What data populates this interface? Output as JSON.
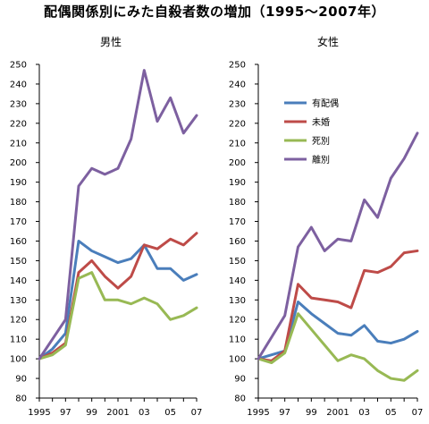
{
  "title": "配偶関係別にみた自殺者数の増加（1995～2007年）",
  "chart_data": [
    {
      "type": "line",
      "title": "男性",
      "x": [
        1995,
        1996,
        1997,
        1998,
        1999,
        2000,
        2001,
        2002,
        2003,
        2004,
        2005,
        2006,
        2007
      ],
      "xtick_labels": [
        "1995",
        "97",
        "99",
        "2001",
        "03",
        "05",
        "07"
      ],
      "xtick_values": [
        1995,
        1997,
        1999,
        2001,
        2003,
        2005,
        2007
      ],
      "ylim": [
        80,
        250
      ],
      "yticks": [
        80,
        90,
        100,
        110,
        120,
        130,
        140,
        150,
        160,
        170,
        180,
        190,
        200,
        210,
        220,
        230,
        240,
        250
      ],
      "grid": false,
      "series": [
        {
          "name": "有配偶",
          "color": "#4a7ebb",
          "values": [
            100,
            105,
            113,
            160,
            155,
            152,
            149,
            151,
            158,
            146,
            146,
            140,
            143
          ]
        },
        {
          "name": "未婚",
          "color": "#be4b48",
          "values": [
            100,
            103,
            108,
            144,
            150,
            142,
            136,
            142,
            158,
            156,
            161,
            158,
            164
          ]
        },
        {
          "name": "死別",
          "color": "#98b954",
          "values": [
            100,
            102,
            107,
            141,
            144,
            130,
            130,
            128,
            131,
            128,
            120,
            122,
            126
          ]
        },
        {
          "name": "離別",
          "color": "#7d60a0",
          "values": [
            100,
            110,
            120,
            188,
            197,
            194,
            197,
            212,
            247,
            221,
            233,
            215,
            224
          ]
        }
      ]
    },
    {
      "type": "line",
      "title": "女性",
      "x": [
        1995,
        1996,
        1997,
        1998,
        1999,
        2000,
        2001,
        2002,
        2003,
        2004,
        2005,
        2006,
        2007
      ],
      "xtick_labels": [
        "1995",
        "97",
        "99",
        "2001",
        "03",
        "05",
        "07"
      ],
      "xtick_values": [
        1995,
        1997,
        1999,
        2001,
        2003,
        2005,
        2007
      ],
      "ylim": [
        80,
        250
      ],
      "yticks": [
        80,
        90,
        100,
        110,
        120,
        130,
        140,
        150,
        160,
        170,
        180,
        190,
        200,
        210,
        220,
        230,
        240,
        250
      ],
      "grid": false,
      "legend_position": "upper-left",
      "series": [
        {
          "name": "有配偶",
          "color": "#4a7ebb",
          "values": [
            100,
            102,
            104,
            129,
            123,
            118,
            113,
            112,
            117,
            109,
            108,
            110,
            114
          ]
        },
        {
          "name": "未婚",
          "color": "#be4b48",
          "values": [
            100,
            99,
            104,
            138,
            131,
            130,
            129,
            126,
            145,
            144,
            147,
            154,
            155
          ]
        },
        {
          "name": "死別",
          "color": "#98b954",
          "values": [
            100,
            98,
            103,
            123,
            115,
            107,
            99,
            102,
            100,
            94,
            90,
            89,
            94
          ]
        },
        {
          "name": "離別",
          "color": "#7d60a0",
          "values": [
            100,
            111,
            122,
            157,
            167,
            155,
            161,
            160,
            181,
            172,
            192,
            202,
            215
          ]
        }
      ]
    }
  ]
}
